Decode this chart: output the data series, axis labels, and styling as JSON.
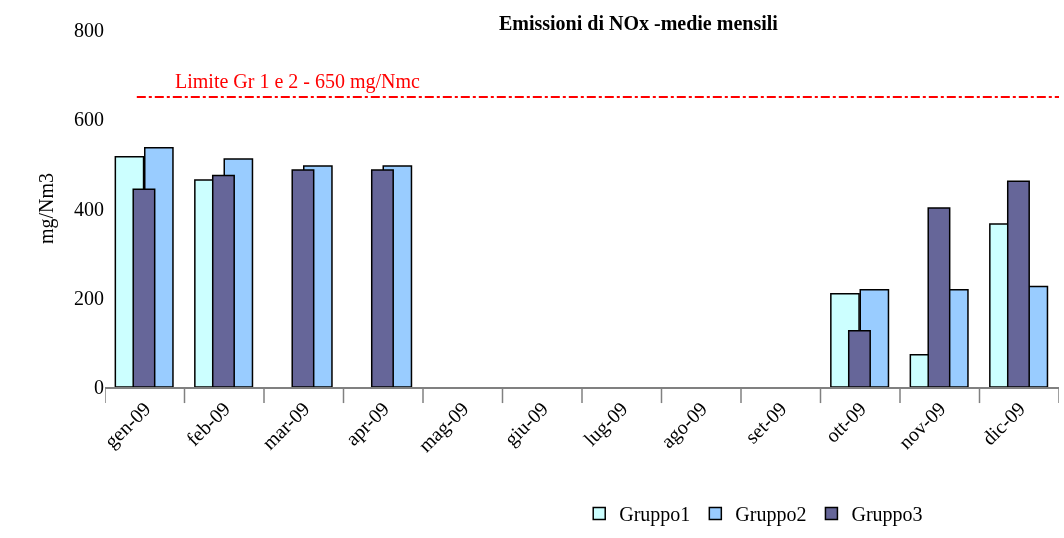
{
  "chart_data": {
    "type": "bar",
    "title": "Emissioni di NOx -medie mensili",
    "ylabel": "mg/Nm3",
    "categories": [
      "gen-09",
      "feb-09",
      "mar-09",
      "apr-09",
      "mag-09",
      "giu-09",
      "lug-09",
      "ago-09",
      "set-09",
      "ott-09",
      "nov-09",
      "dic-09"
    ],
    "series": [
      {
        "name": "Gruppo1",
        "color": "#ccffff",
        "values": [
          516,
          464,
          null,
          null,
          null,
          null,
          null,
          null,
          null,
          209,
          72,
          365
        ]
      },
      {
        "name": "Gruppo2",
        "color": "#99ccff",
        "values": [
          536,
          511,
          495,
          495,
          null,
          null,
          null,
          null,
          null,
          218,
          218,
          225
        ]
      },
      {
        "name": "Gruppo3",
        "color": "#666699",
        "values": [
          443,
          474,
          486,
          486,
          null,
          null,
          null,
          null,
          null,
          126,
          401,
          461
        ]
      }
    ],
    "ylim": [
      0,
      800
    ],
    "yticks": [
      0,
      200,
      400,
      600,
      800
    ],
    "ref_lines": [
      {
        "axis": "y",
        "value": 650,
        "label": "Limite Gr 1 e 2 - 650 mg/Nmc",
        "color": "#ff0000",
        "line_style": "dashdot"
      }
    ],
    "legend": "bottom"
  }
}
